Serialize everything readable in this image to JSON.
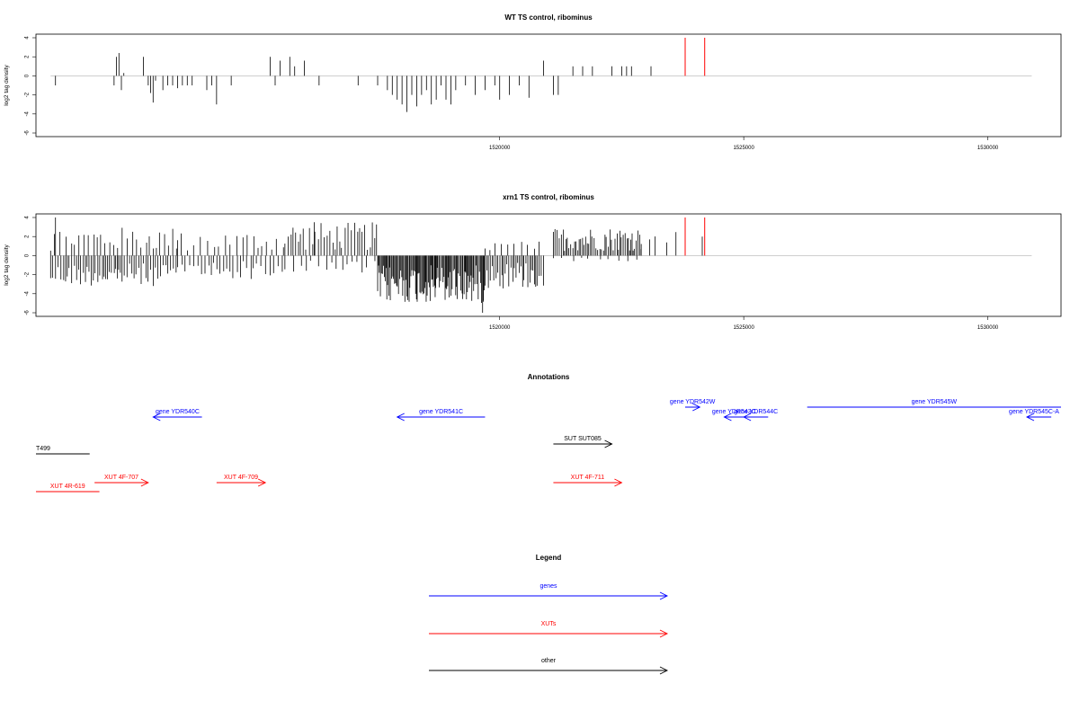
{
  "chart_data": [
    {
      "type": "bar",
      "title": "WT TS control, ribominus",
      "ylabel": "log2 tag density",
      "xlim": [
        1510500,
        1531500
      ],
      "ylim": [
        -6,
        4
      ],
      "x_ticks": [
        1520000,
        1525000,
        1530000
      ],
      "y_ticks": [
        -6,
        -4,
        -2,
        0,
        2,
        4
      ],
      "bar_color": "#000000",
      "highlight_color": "#ff0000",
      "values_x": [
        1510900,
        1512100,
        1512150,
        1512200,
        1512250,
        1512300,
        1512700,
        1512800,
        1512850,
        1512900,
        1512950,
        1513100,
        1513200,
        1513300,
        1513400,
        1513500,
        1513600,
        1513700,
        1514000,
        1514100,
        1514200,
        1514500,
        1515300,
        1515400,
        1515500,
        1515700,
        1515800,
        1516000,
        1516300,
        1517100,
        1517500,
        1517700,
        1517800,
        1517900,
        1518000,
        1518100,
        1518200,
        1518300,
        1518400,
        1518500,
        1518600,
        1518700,
        1518800,
        1518900,
        1519000,
        1519100,
        1519300,
        1519500,
        1519700,
        1519900,
        1520000,
        1520200,
        1520400,
        1520600,
        1520900,
        1521100,
        1521200,
        1521500,
        1521700,
        1521900,
        1522300,
        1522500,
        1522600,
        1522700,
        1523100
      ],
      "values_y": [
        -1.0,
        -1.0,
        2.0,
        2.4,
        -1.5,
        0.3,
        2.0,
        -1.0,
        -1.8,
        -2.8,
        -0.5,
        -1.5,
        -1.0,
        -1.0,
        -1.3,
        -1.0,
        -1.0,
        -1.0,
        -1.5,
        -1.0,
        -3.0,
        -1.0,
        2.0,
        -1.0,
        1.6,
        2.0,
        1.0,
        1.6,
        -1.0,
        -1.0,
        -1.0,
        -1.5,
        -2.0,
        -2.5,
        -3.0,
        -3.8,
        -2.0,
        -3.2,
        -2.0,
        -1.5,
        -3.0,
        -2.5,
        -1.0,
        -2.5,
        -3.0,
        -1.5,
        -1.0,
        -2.0,
        -1.5,
        -1.0,
        -2.5,
        -2.0,
        -1.0,
        -2.3,
        1.6,
        -2.0,
        -2.0,
        1.0,
        1.0,
        1.0,
        1.0,
        1.0,
        1.0,
        1.0,
        1.0
      ],
      "highlights_x": [
        1523800,
        1524200
      ],
      "highlights_y": [
        4,
        4
      ]
    },
    {
      "type": "bar",
      "title": "xrn1 TS control, ribominus",
      "ylabel": "log2 tag density",
      "xlim": [
        1510500,
        1531500
      ],
      "ylim": [
        -6,
        4
      ],
      "x_ticks": [
        1520000,
        1525000,
        1530000
      ],
      "y_ticks": [
        -6,
        -4,
        -2,
        0,
        2,
        4
      ],
      "bar_color": "#000000",
      "highlight_color": "#ff0000",
      "highlights_x": [
        1523800,
        1524200
      ],
      "highlights_y": [
        4,
        4
      ]
    }
  ],
  "axis_labels": {
    "y_ticks": [
      "4",
      "2",
      "0",
      "-2",
      "-4",
      "-6"
    ],
    "x_ticks": [
      "1520000",
      "1525000",
      "1530000"
    ]
  },
  "annotations": {
    "title": "Annotations",
    "features": [
      {
        "label": "gene YDR540C",
        "color": "#0000ff",
        "x1": 1512900,
        "x2": 1513900,
        "dir": "left",
        "row": 1
      },
      {
        "label": "gene YDR541C",
        "color": "#0000ff",
        "x1": 1517900,
        "x2": 1519700,
        "dir": "left",
        "row": 1
      },
      {
        "label": "gene YDR542W",
        "color": "#0000ff",
        "x1": 1523800,
        "x2": 1524100,
        "dir": "right",
        "row": 0
      },
      {
        "label": "gene YDR543C",
        "color": "#0000ff",
        "x1": 1524600,
        "x2": 1525000,
        "dir": "left",
        "row": 1
      },
      {
        "label": "gene YDR544C",
        "color": "#0000ff",
        "x1": 1525000,
        "x2": 1525500,
        "dir": "left",
        "row": 1
      },
      {
        "label": "gene YDR545W",
        "color": "#0000ff",
        "x1": 1526300,
        "x2": 1531500,
        "dir": "none",
        "row": 0
      },
      {
        "label": "gene YDR545C-A",
        "color": "#0000ff",
        "x1": 1530800,
        "x2": 1531300,
        "dir": "left",
        "row": 1
      },
      {
        "label": "T499",
        "color": "#000000",
        "x1": 1510500,
        "x2": 1511600,
        "dir": "none",
        "row": 2
      },
      {
        "label": "SUT SUT085",
        "color": "#000000",
        "x1": 1521100,
        "x2": 1522300,
        "dir": "right",
        "row": 3
      },
      {
        "label": "XUT 4F-707",
        "color": "#ff0000",
        "x1": 1511700,
        "x2": 1512800,
        "dir": "right",
        "row": 4
      },
      {
        "label": "XUT 4F-709",
        "color": "#ff0000",
        "x1": 1514200,
        "x2": 1515200,
        "dir": "right",
        "row": 4
      },
      {
        "label": "XUT 4F-711",
        "color": "#ff0000",
        "x1": 1521100,
        "x2": 1522500,
        "dir": "right",
        "row": 4
      },
      {
        "label": "XUT 4R-619",
        "color": "#ff0000",
        "x1": 1510500,
        "x2": 1511800,
        "dir": "none",
        "row": 5
      }
    ]
  },
  "legend": {
    "title": "Legend",
    "items": [
      {
        "label": "genes",
        "color": "#0000ff"
      },
      {
        "label": "XUTs",
        "color": "#ff0000"
      },
      {
        "label": "other",
        "color": "#000000"
      }
    ]
  }
}
